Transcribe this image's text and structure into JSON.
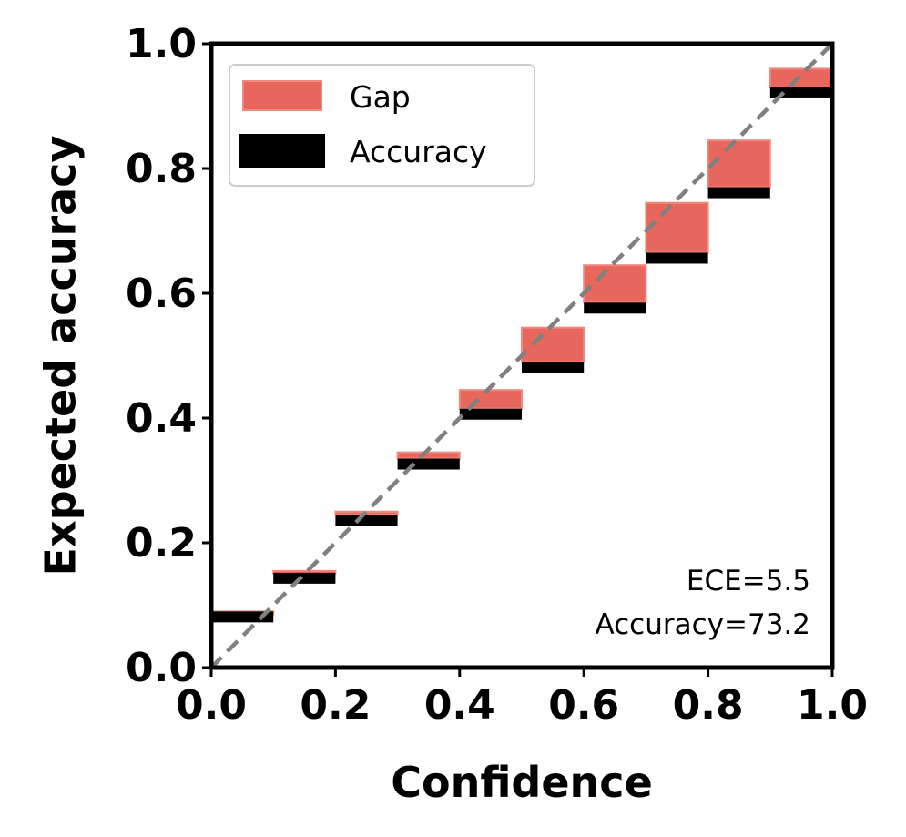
{
  "chart_data": {
    "type": "bar",
    "title": "",
    "xlabel": "Confidence",
    "ylabel": "Expected accuracy",
    "xlim": [
      0.0,
      1.0
    ],
    "ylim": [
      0.0,
      1.0
    ],
    "xticks": [
      "0.0",
      "0.2",
      "0.4",
      "0.6",
      "0.8",
      "1.0"
    ],
    "yticks": [
      "0.0",
      "0.2",
      "0.4",
      "0.6",
      "0.8",
      "1.0"
    ],
    "bin_width": 0.1,
    "bins": [
      0.05,
      0.15,
      0.25,
      0.35,
      0.45,
      0.55,
      0.65,
      0.75,
      0.85,
      0.95
    ],
    "series": [
      {
        "name": "Gap",
        "color": "#e8675c",
        "values": [
          0.085,
          0.155,
          0.25,
          0.345,
          0.445,
          0.545,
          0.645,
          0.745,
          0.845,
          0.96
        ]
      },
      {
        "name": "Accuracy",
        "color": "#000000",
        "values": [
          0.09,
          0.152,
          0.245,
          0.335,
          0.415,
          0.49,
          0.585,
          0.665,
          0.77,
          0.93
        ]
      }
    ],
    "diagonal": {
      "color": "#808080",
      "style": "dashed"
    },
    "legend": {
      "position": "top-left",
      "entries": [
        "Gap",
        "Accuracy"
      ]
    },
    "annotations": [
      "ECE=5.5",
      "Accuracy=73.2"
    ],
    "grid": false
  }
}
